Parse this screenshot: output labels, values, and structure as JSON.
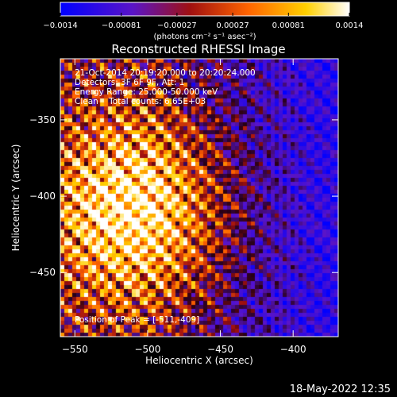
{
  "chart_data": {
    "type": "heatmap",
    "title": "Reconstructed RHESSI Image",
    "xlabel": "Heliocentric X (arcsec)",
    "ylabel": "Heliocentric Y (arcsec)",
    "xlim": [
      -560,
      -369
    ],
    "ylim": [
      -492,
      -310
    ],
    "x_ticks": [
      -550,
      -500,
      -450,
      -400
    ],
    "x_tick_labels": [
      "−550",
      "−500",
      "−450",
      "−400"
    ],
    "y_ticks": [
      -350,
      -400,
      -450
    ],
    "y_tick_labels": [
      "−350",
      "−400",
      "−450"
    ],
    "colorbar": {
      "range": [
        -0.0014,
        0.0014
      ],
      "ticks": [
        -0.0014,
        -0.00081,
        -0.00027,
        0.00027,
        0.00081,
        0.0014
      ],
      "tick_labels": [
        "−0.0014",
        "−0.00081",
        "−0.00027",
        "0.00027",
        "0.00081",
        "0.0014"
      ],
      "units_label": "(photons cm⁻² s⁻¹ asec⁻²)",
      "colors": [
        "#0000ff",
        "#5a14c8",
        "#a01010",
        "#ff6400",
        "#ffd000",
        "#ffffff"
      ]
    },
    "peak": {
      "x": -511,
      "y": -409
    },
    "grid": false,
    "legend": "none"
  },
  "info": {
    "line1": "21-Oct-2014 20:19:20.000 to 20:20:24.000",
    "line2": "Detectors: 3F 6F 9F, Att: 1",
    "line3": "Energy Range: 25.000-50.000 keV",
    "line4": "Clean    Total counts: 6.65E+03",
    "peak_line": "Position of Peak = [-511,-409]"
  },
  "footer": {
    "timestamp": "18-May-2022 12:35"
  }
}
